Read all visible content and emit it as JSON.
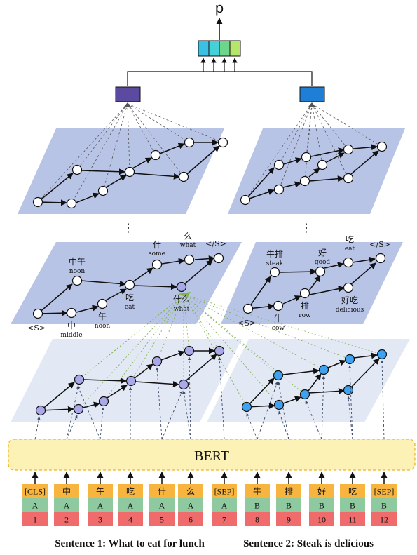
{
  "output_label": "p",
  "encoder_label": "BERT",
  "dots": "⋮",
  "sentence1_lattice": {
    "start": "<S>",
    "end": "</S>",
    "nodes": [
      {
        "zh": "中午",
        "en": "noon"
      },
      {
        "zh": "中",
        "en": "middle"
      },
      {
        "zh": "午",
        "en": "noon"
      },
      {
        "zh": "吃",
        "en": "eat"
      },
      {
        "zh": "什",
        "en": "some"
      },
      {
        "zh": "什么",
        "en": "what"
      },
      {
        "zh": "么",
        "en": "what"
      }
    ]
  },
  "sentence2_lattice": {
    "start": "<S>",
    "end": "</S>",
    "nodes": [
      {
        "zh": "牛排",
        "en": "steak"
      },
      {
        "zh": "牛",
        "en": "cow"
      },
      {
        "zh": "排",
        "en": "row"
      },
      {
        "zh": "好",
        "en": "good"
      },
      {
        "zh": "好吃",
        "en": "delicious"
      },
      {
        "zh": "吃",
        "en": "eat"
      }
    ]
  },
  "tokens": [
    {
      "token": "[CLS]",
      "segment": "A",
      "position": "1"
    },
    {
      "token": "中",
      "segment": "A",
      "position": "2"
    },
    {
      "token": "午",
      "segment": "A",
      "position": "3"
    },
    {
      "token": "吃",
      "segment": "A",
      "position": "4"
    },
    {
      "token": "什",
      "segment": "A",
      "position": "5"
    },
    {
      "token": "么",
      "segment": "A",
      "position": "6"
    },
    {
      "token": "[SEP]",
      "segment": "A",
      "position": "7"
    },
    {
      "token": "牛",
      "segment": "B",
      "position": "8"
    },
    {
      "token": "排",
      "segment": "B",
      "position": "9"
    },
    {
      "token": "好",
      "segment": "B",
      "position": "10"
    },
    {
      "token": "吃",
      "segment": "B",
      "position": "11"
    },
    {
      "token": "[SEP]",
      "segment": "B",
      "position": "12"
    }
  ],
  "captions": {
    "sentence1": "Sentence 1: What to eat for lunch",
    "sentence2": "Sentence 2: Steak is delicious"
  },
  "colors": {
    "plane_dark": "#b8c4e6",
    "plane_light": "#e3e8f5",
    "bert_fill": "#fdf2b5",
    "bert_border": "#f0b429",
    "token_orange": "#f7b540",
    "segment_green": "#8ec9a0",
    "position_red": "#f06b6b",
    "node_purple": "#a9a8e8",
    "node_blue": "#3ea2f0",
    "pool1": "#5b4aa0",
    "pool2": "#1f7fd6",
    "dashed_green": "#7fb24a"
  }
}
